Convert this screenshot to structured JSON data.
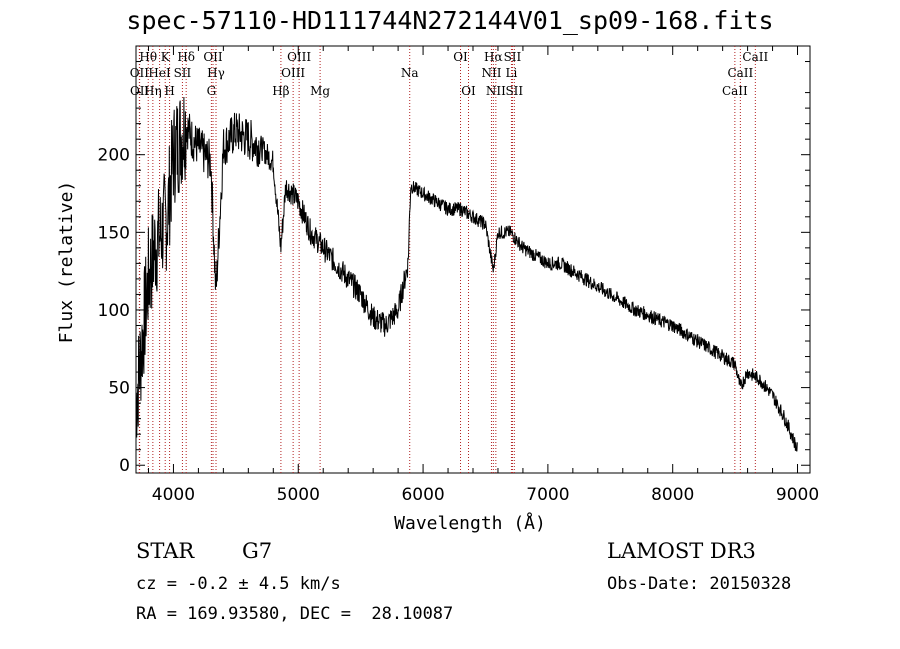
{
  "chart_data": {
    "type": "line",
    "title": "spec-57110-HD111744N272144V01_sp09-168.fits",
    "xlabel": "Wavelength (Å)",
    "ylabel": "Flux (relative)",
    "xlim": [
      3700,
      9100
    ],
    "ylim": [
      -5,
      270
    ],
    "x_ticks": [
      4000,
      5000,
      6000,
      7000,
      8000,
      9000
    ],
    "y_ticks": [
      0,
      50,
      100,
      150,
      200
    ],
    "series": [
      {
        "name": "spectrum",
        "x": [
          3700,
          3750,
          3800,
          3850,
          3900,
          3950,
          4000,
          4050,
          4100,
          4150,
          4200,
          4250,
          4300,
          4340,
          4400,
          4450,
          4500,
          4600,
          4700,
          4800,
          4860,
          4900,
          5000,
          5100,
          5200,
          5300,
          5400,
          5500,
          5600,
          5700,
          5800,
          5880,
          5900,
          6000,
          6100,
          6200,
          6300,
          6400,
          6500,
          6563,
          6600,
          6700,
          6800,
          6900,
          7000,
          7100,
          7200,
          7300,
          7400,
          7500,
          7600,
          7700,
          7800,
          7900,
          8000,
          8100,
          8200,
          8300,
          8400,
          8500,
          8542,
          8600,
          8700,
          8800,
          8900,
          9000
        ],
        "y": [
          40,
          80,
          120,
          140,
          150,
          160,
          200,
          210,
          220,
          210,
          205,
          200,
          195,
          110,
          205,
          210,
          215,
          210,
          205,
          195,
          140,
          180,
          170,
          150,
          140,
          130,
          120,
          110,
          95,
          90,
          100,
          130,
          180,
          175,
          170,
          165,
          165,
          160,
          155,
          125,
          150,
          150,
          140,
          135,
          130,
          130,
          125,
          120,
          115,
          110,
          105,
          100,
          97,
          93,
          90,
          85,
          80,
          75,
          70,
          65,
          50,
          60,
          55,
          45,
          30,
          10
        ]
      }
    ],
    "lines": [
      {
        "name": "Hθ",
        "x": 3798,
        "row": 1
      },
      {
        "name": "OII",
        "x": 3727,
        "row": 2
      },
      {
        "name": "OII",
        "x": 3729,
        "row": 3
      },
      {
        "name": "Hη",
        "x": 3835,
        "row": 3
      },
      {
        "name": "HeI",
        "x": 3889,
        "row": 2
      },
      {
        "name": "K",
        "x": 3934,
        "row": 1
      },
      {
        "name": "H",
        "x": 3969,
        "row": 3
      },
      {
        "name": "Hδ",
        "x": 4102,
        "row": 1
      },
      {
        "name": "SII",
        "x": 4072,
        "row": 2
      },
      {
        "name": "OII",
        "x": 4317,
        "row": 1
      },
      {
        "name": "Hγ",
        "x": 4341,
        "row": 2
      },
      {
        "name": "G",
        "x": 4304,
        "row": 3
      },
      {
        "name": "Hβ",
        "x": 4861,
        "row": 3
      },
      {
        "name": "OIII",
        "x": 4959,
        "row": 2
      },
      {
        "name": "OIII",
        "x": 5007,
        "row": 1
      },
      {
        "name": "Mg",
        "x": 5175,
        "row": 3
      },
      {
        "name": "Na",
        "x": 5893,
        "row": 2
      },
      {
        "name": "OI",
        "x": 6300,
        "row": 1
      },
      {
        "name": "OI",
        "x": 6364,
        "row": 3
      },
      {
        "name": "Hα",
        "x": 6563,
        "row": 1
      },
      {
        "name": "NII",
        "x": 6548,
        "row": 2
      },
      {
        "name": "NII",
        "x": 6583,
        "row": 3
      },
      {
        "name": "SII",
        "x": 6716,
        "row": 1
      },
      {
        "name": "Li",
        "x": 6708,
        "row": 2
      },
      {
        "name": "SII",
        "x": 6731,
        "row": 3
      },
      {
        "name": "CaII",
        "x": 8662,
        "row": 1
      },
      {
        "name": "CaII",
        "x": 8542,
        "row": 2
      },
      {
        "name": "CaII",
        "x": 8498,
        "row": 3
      }
    ]
  },
  "info": {
    "class": "STAR",
    "subclass": "G7",
    "cz": "cz = -0.2 ± 4.5 km/s",
    "coords": "RA = 169.93580, DEC =  28.10087",
    "survey": "LAMOST DR3",
    "obs_date": "Obs-Date: 20150328"
  },
  "colors": {
    "line_marker": "#b22222",
    "spectrum": "#000000"
  }
}
